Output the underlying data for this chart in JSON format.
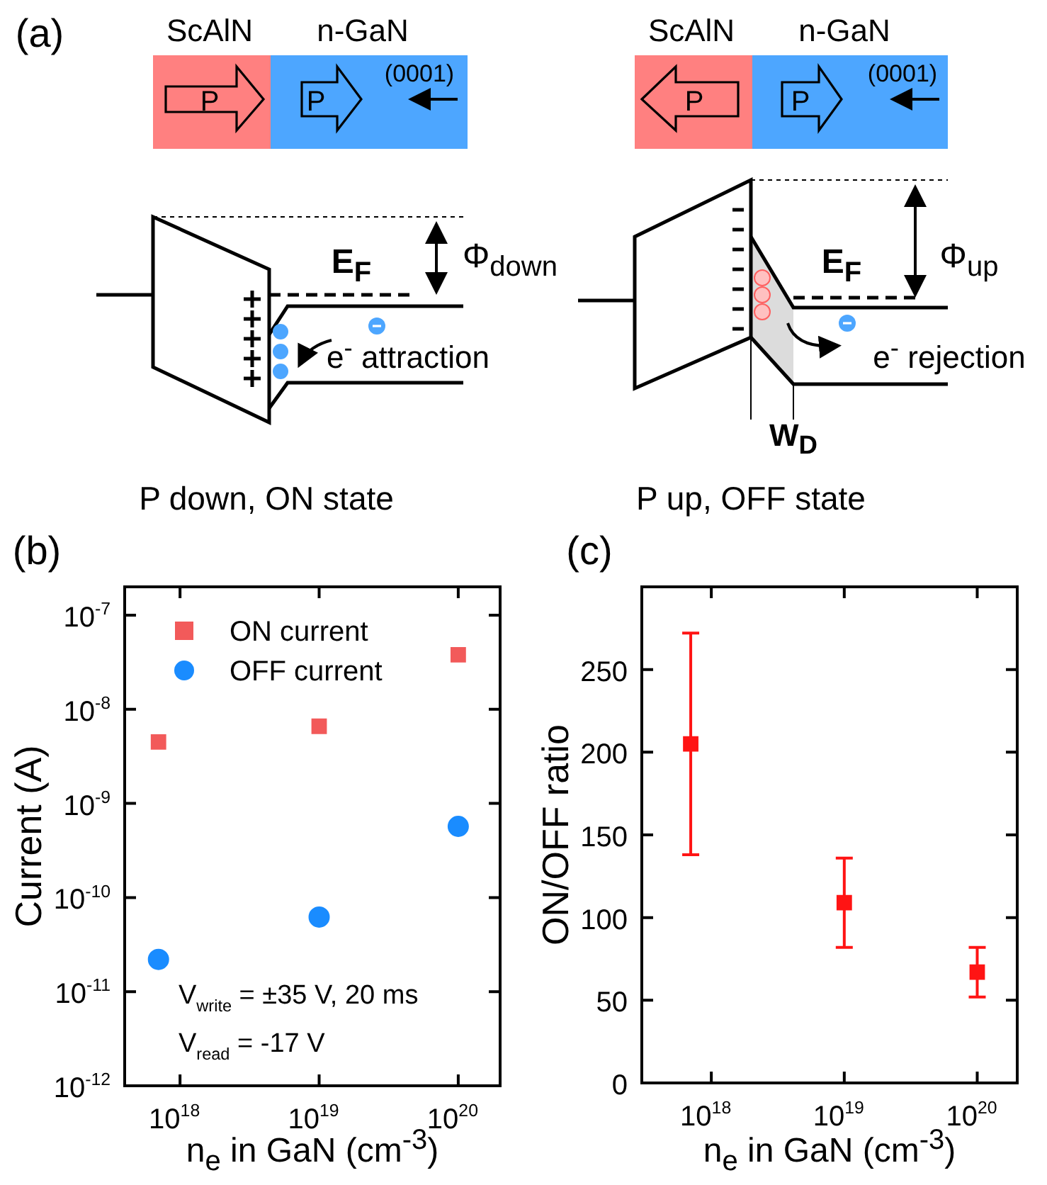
{
  "chart_data": [
    {
      "type": "other",
      "title": "(a)",
      "annotations": [
        "ScAlN",
        "n-GaN",
        "P",
        "P",
        "(0001)",
        "E$_{F}$",
        "Φ$_{down}$",
        "e$^{-}$ attraction",
        "P down, ON state",
        "ScAlN",
        "n-GaN",
        "P",
        "P",
        "(0001)",
        "E$_{F}$",
        "Φ$_{up}$",
        "e$^{-}$ rejection",
        "W$_{D}$",
        "P up, OFF state"
      ]
    },
    {
      "type": "scatter",
      "title": "(b)",
      "xlabel": "n$_{e}$ in GaN (cm$^{-3}$)",
      "ylabel": "Current (A)",
      "log": "xy",
      "xlim": [
        4e+17,
        2e+20
      ],
      "xticks": [
        {
          "value": 1e+18,
          "label": "10$^{18}$"
        },
        {
          "value": 1e+19,
          "label": "10$^{19}$"
        },
        {
          "value": 1e+20,
          "label": "10$^{20}$"
        }
      ],
      "ylim": [
        1e-12,
        2e-07
      ],
      "yticks": [
        {
          "value": 1e-12,
          "label": "10$^{-12}$"
        },
        {
          "value": 1e-11,
          "label": "10$^{-11}$"
        },
        {
          "value": 1e-10,
          "label": "10$^{-10}$"
        },
        {
          "value": 1e-09,
          "label": "10$^{-9}$"
        },
        {
          "value": 1e-08,
          "label": "10$^{-8}$"
        },
        {
          "value": 1e-07,
          "label": "10$^{-7}$"
        }
      ],
      "x": [
        7e+17,
        1e+19,
        1e+20
      ],
      "legend": "top left",
      "series": [
        {
          "name": "ON current",
          "color": "#f25a5a",
          "marker": "square",
          "values": [
            4.5e-09,
            6.6e-09,
            3.8e-08
          ]
        },
        {
          "name": "OFF current",
          "color": "#1a8cff",
          "marker": "circle",
          "values": [
            2.2e-11,
            6.2e-11,
            5.7e-10
          ]
        }
      ],
      "annotations": [
        "V$_{write}$ = ±35 V, 20 ms",
        "V$_{read}$ = -17 V"
      ]
    },
    {
      "type": "scatter",
      "title": "(c)",
      "xlabel": "n$_{e}$ in GaN (cm$^{-3}$)",
      "ylabel": "ON/OFF ratio",
      "log": "x",
      "xlim": [
        3e+17,
        2e+20
      ],
      "xticks": [
        {
          "value": 1e+18,
          "label": "10$^{18}$"
        },
        {
          "value": 1e+19,
          "label": "10$^{19}$"
        },
        {
          "value": 1e+20,
          "label": "10$^{20}$"
        }
      ],
      "ylim": [
        0,
        300
      ],
      "yticks": [
        0,
        50,
        100,
        150,
        200,
        250
      ],
      "x": [
        7e+17,
        1e+19,
        1e+20
      ],
      "series": [
        {
          "color": "#ff1414",
          "marker": "square",
          "values": [
            205,
            109,
            67
          ],
          "errors": [
            [
              138,
              272
            ],
            [
              82,
              136
            ],
            [
              52,
              82
            ]
          ]
        }
      ]
    }
  ]
}
